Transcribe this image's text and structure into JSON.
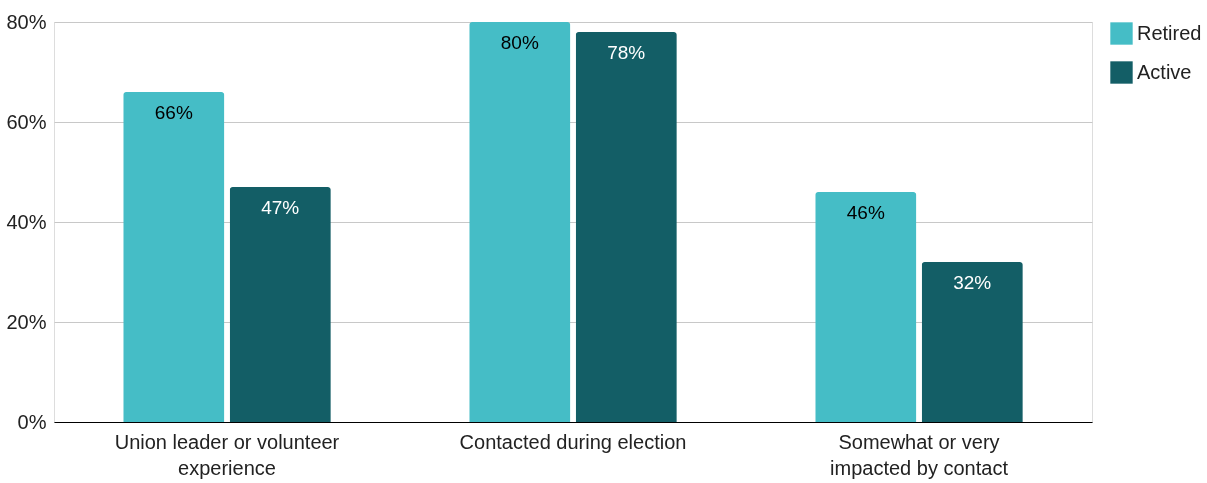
{
  "chart_data": {
    "type": "bar",
    "categories": [
      "Union leader or volunteer experience",
      "Contacted during election",
      "Somewhat or very impacted by contact"
    ],
    "series": [
      {
        "name": "Retired",
        "color": "#45bdc6",
        "values": [
          66,
          80,
          46
        ],
        "value_labels": [
          "66%",
          "80%",
          "46%"
        ]
      },
      {
        "name": "Active",
        "color": "#135e66",
        "values": [
          47,
          78,
          32
        ],
        "value_labels": [
          "47%",
          "78%",
          "32%"
        ]
      }
    ],
    "ylim": [
      0,
      80
    ],
    "yticks": [
      {
        "value": 0,
        "label": "0%"
      },
      {
        "value": 20,
        "label": "20%"
      },
      {
        "value": 40,
        "label": "40%"
      },
      {
        "value": 60,
        "label": "60%"
      },
      {
        "value": 80,
        "label": "80%"
      }
    ],
    "grid": "y",
    "legend": "top right"
  }
}
